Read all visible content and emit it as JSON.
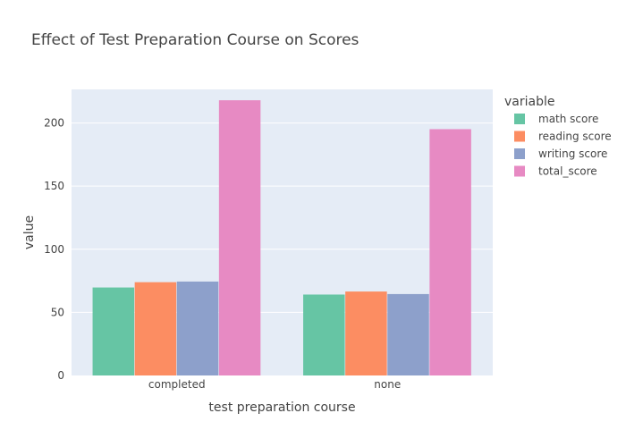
{
  "chart_data": {
    "type": "bar",
    "title": "Effect of Test Preparation Course on Scores",
    "xlabel": "test preparation course",
    "ylabel": "value",
    "categories": [
      "completed",
      "none"
    ],
    "ylim": [
      0,
      226.6
    ],
    "yticks": [
      0,
      50,
      100,
      150,
      200
    ],
    "grid": true,
    "legend_title": "variable",
    "legend_position": "right",
    "series": [
      {
        "name": "math score",
        "color": "#66c5a4",
        "values": [
          69.7,
          64.1
        ]
      },
      {
        "name": "reading score",
        "color": "#fc8d62",
        "values": [
          73.9,
          66.5
        ]
      },
      {
        "name": "writing score",
        "color": "#8da0cb",
        "values": [
          74.4,
          64.5
        ]
      },
      {
        "name": "total_score",
        "color": "#e78ac3",
        "values": [
          218.0,
          195.1
        ]
      }
    ],
    "plot_background": "#e5ecf6"
  }
}
